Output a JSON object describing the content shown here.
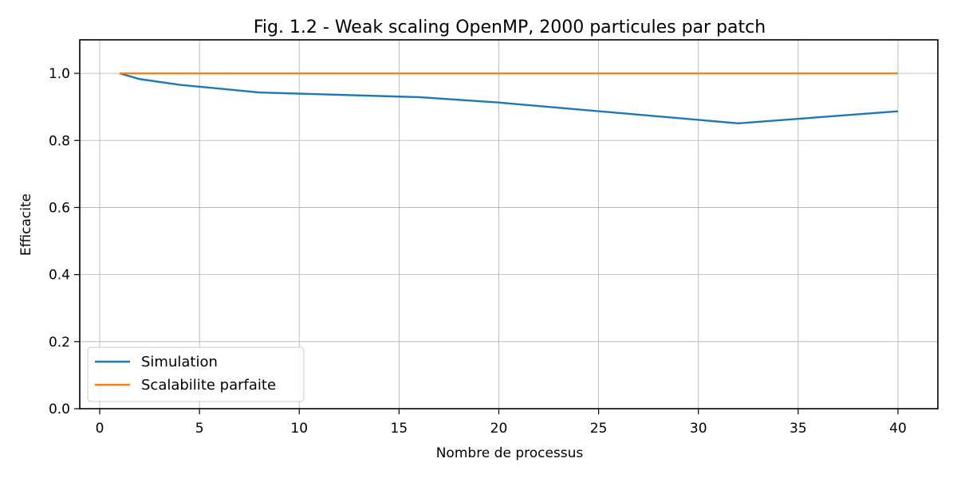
{
  "chart_data": {
    "type": "line",
    "title": "Fig. 1.2 - Weak scaling OpenMP, 2000 particules par patch",
    "xlabel": "Nombre de processus",
    "ylabel": "Efficacite",
    "xlim": [
      -1,
      42
    ],
    "ylim": [
      0,
      1.1
    ],
    "xticks": [
      0,
      5,
      10,
      15,
      20,
      25,
      30,
      35,
      40
    ],
    "yticks": [
      0.0,
      0.2,
      0.4,
      0.6,
      0.8,
      1.0
    ],
    "xtick_labels": [
      "0",
      "5",
      "10",
      "15",
      "20",
      "25",
      "30",
      "35",
      "40"
    ],
    "ytick_labels": [
      "0.0",
      "0.2",
      "0.4",
      "0.6",
      "0.8",
      "1.0"
    ],
    "grid": true,
    "legend_position": "bottom-left",
    "series": [
      {
        "name": "Simulation",
        "color": "#1f77b4",
        "x": [
          1,
          2,
          4,
          8,
          16,
          20,
          32,
          40
        ],
        "y": [
          1.0,
          0.983,
          0.966,
          0.943,
          0.929,
          0.913,
          0.851,
          0.887
        ]
      },
      {
        "name": "Scalabilite parfaite",
        "color": "#ff7f0e",
        "x": [
          1,
          2,
          4,
          8,
          16,
          20,
          32,
          40
        ],
        "y": [
          1.0,
          1.0,
          1.0,
          1.0,
          1.0,
          1.0,
          1.0,
          1.0
        ]
      }
    ]
  }
}
